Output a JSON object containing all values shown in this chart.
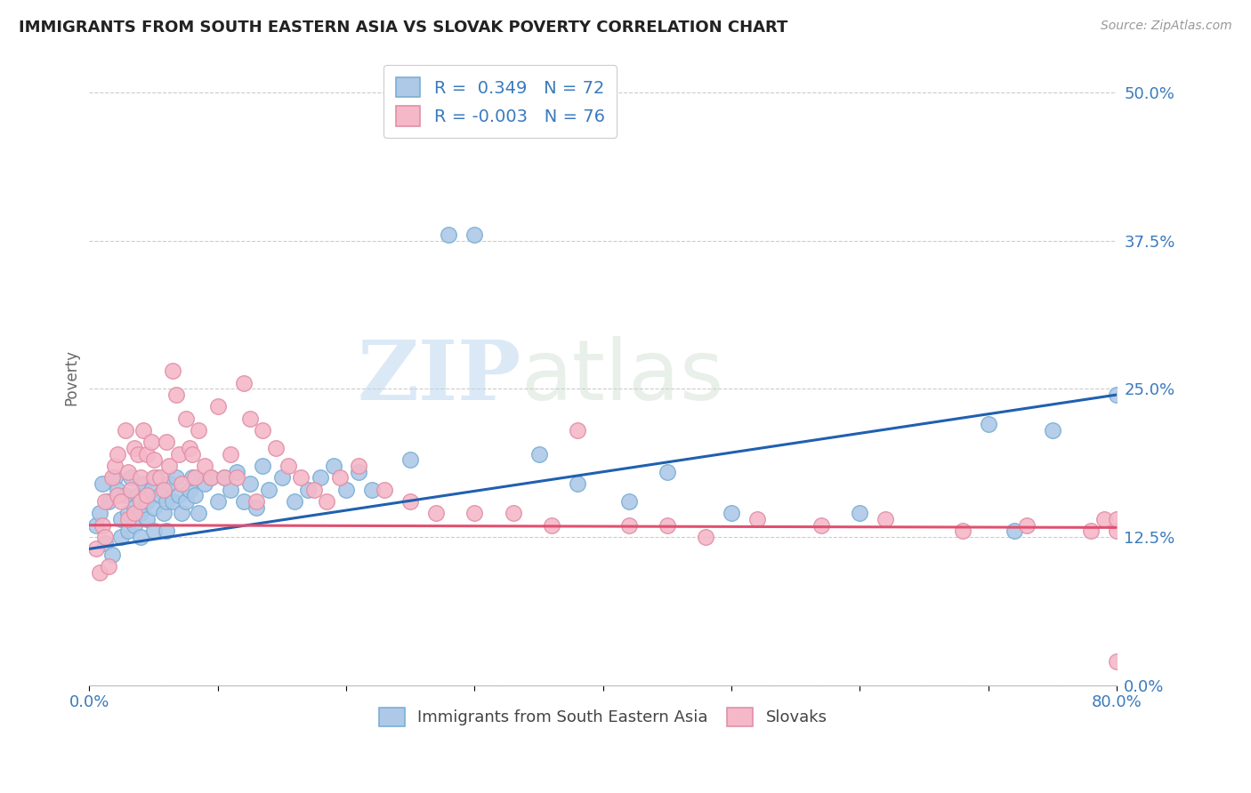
{
  "title": "IMMIGRANTS FROM SOUTH EASTERN ASIA VS SLOVAK POVERTY CORRELATION CHART",
  "source": "Source: ZipAtlas.com",
  "ylabel": "Poverty",
  "ylim": [
    0.0,
    0.52
  ],
  "xlim": [
    0.0,
    0.8
  ],
  "yticks": [
    0.0,
    0.125,
    0.25,
    0.375,
    0.5
  ],
  "ytick_labels": [
    "0.0%",
    "12.5%",
    "25.0%",
    "37.5%",
    "50.0%"
  ],
  "xtick_labels": [
    "0.0%",
    "",
    "",
    "",
    "",
    "",
    "",
    "",
    "80.0%"
  ],
  "color_blue_fill": "#aec9e8",
  "color_blue_edge": "#7aafd4",
  "color_pink_fill": "#f5b8c8",
  "color_pink_edge": "#e090a8",
  "color_blue_line": "#2060b0",
  "color_pink_line": "#e05070",
  "watermark_zip": "ZIP",
  "watermark_atlas": "atlas",
  "blue_line_x0": 0.0,
  "blue_line_y0": 0.115,
  "blue_line_x1": 0.8,
  "blue_line_y1": 0.245,
  "pink_line_x0": 0.0,
  "pink_line_y0": 0.135,
  "pink_line_x1": 0.8,
  "pink_line_y1": 0.133,
  "blue_points_x": [
    0.005,
    0.008,
    0.01,
    0.012,
    0.015,
    0.018,
    0.02,
    0.022,
    0.025,
    0.025,
    0.028,
    0.03,
    0.03,
    0.032,
    0.035,
    0.035,
    0.038,
    0.04,
    0.04,
    0.042,
    0.045,
    0.045,
    0.048,
    0.05,
    0.05,
    0.052,
    0.055,
    0.058,
    0.06,
    0.06,
    0.062,
    0.065,
    0.068,
    0.07,
    0.072,
    0.075,
    0.078,
    0.08,
    0.082,
    0.085,
    0.09,
    0.095,
    0.1,
    0.105,
    0.11,
    0.115,
    0.12,
    0.125,
    0.13,
    0.135,
    0.14,
    0.15,
    0.16,
    0.17,
    0.18,
    0.19,
    0.2,
    0.21,
    0.22,
    0.25,
    0.28,
    0.3,
    0.35,
    0.38,
    0.42,
    0.45,
    0.5,
    0.6,
    0.7,
    0.72,
    0.75,
    0.8
  ],
  "blue_points_y": [
    0.135,
    0.145,
    0.17,
    0.12,
    0.155,
    0.11,
    0.175,
    0.165,
    0.14,
    0.125,
    0.16,
    0.145,
    0.13,
    0.175,
    0.15,
    0.135,
    0.16,
    0.145,
    0.125,
    0.17,
    0.155,
    0.14,
    0.165,
    0.15,
    0.13,
    0.175,
    0.16,
    0.145,
    0.155,
    0.13,
    0.17,
    0.155,
    0.175,
    0.16,
    0.145,
    0.155,
    0.165,
    0.175,
    0.16,
    0.145,
    0.17,
    0.175,
    0.155,
    0.175,
    0.165,
    0.18,
    0.155,
    0.17,
    0.15,
    0.185,
    0.165,
    0.175,
    0.155,
    0.165,
    0.175,
    0.185,
    0.165,
    0.18,
    0.165,
    0.19,
    0.38,
    0.38,
    0.195,
    0.17,
    0.155,
    0.18,
    0.145,
    0.145,
    0.22,
    0.13,
    0.215,
    0.245
  ],
  "pink_points_x": [
    0.005,
    0.008,
    0.01,
    0.012,
    0.012,
    0.015,
    0.018,
    0.02,
    0.022,
    0.022,
    0.025,
    0.028,
    0.03,
    0.03,
    0.032,
    0.035,
    0.035,
    0.038,
    0.04,
    0.04,
    0.042,
    0.045,
    0.045,
    0.048,
    0.05,
    0.05,
    0.055,
    0.058,
    0.06,
    0.062,
    0.065,
    0.068,
    0.07,
    0.072,
    0.075,
    0.078,
    0.08,
    0.082,
    0.085,
    0.09,
    0.095,
    0.1,
    0.105,
    0.11,
    0.115,
    0.12,
    0.125,
    0.13,
    0.135,
    0.145,
    0.155,
    0.165,
    0.175,
    0.185,
    0.195,
    0.21,
    0.23,
    0.25,
    0.27,
    0.3,
    0.33,
    0.36,
    0.38,
    0.42,
    0.45,
    0.48,
    0.52,
    0.57,
    0.62,
    0.68,
    0.73,
    0.78,
    0.79,
    0.8,
    0.8,
    0.8
  ],
  "pink_points_y": [
    0.115,
    0.095,
    0.135,
    0.155,
    0.125,
    0.1,
    0.175,
    0.185,
    0.16,
    0.195,
    0.155,
    0.215,
    0.14,
    0.18,
    0.165,
    0.2,
    0.145,
    0.195,
    0.175,
    0.155,
    0.215,
    0.195,
    0.16,
    0.205,
    0.175,
    0.19,
    0.175,
    0.165,
    0.205,
    0.185,
    0.265,
    0.245,
    0.195,
    0.17,
    0.225,
    0.2,
    0.195,
    0.175,
    0.215,
    0.185,
    0.175,
    0.235,
    0.175,
    0.195,
    0.175,
    0.255,
    0.225,
    0.155,
    0.215,
    0.2,
    0.185,
    0.175,
    0.165,
    0.155,
    0.175,
    0.185,
    0.165,
    0.155,
    0.145,
    0.145,
    0.145,
    0.135,
    0.215,
    0.135,
    0.135,
    0.125,
    0.14,
    0.135,
    0.14,
    0.13,
    0.135,
    0.13,
    0.14,
    0.13,
    0.02,
    0.14
  ]
}
